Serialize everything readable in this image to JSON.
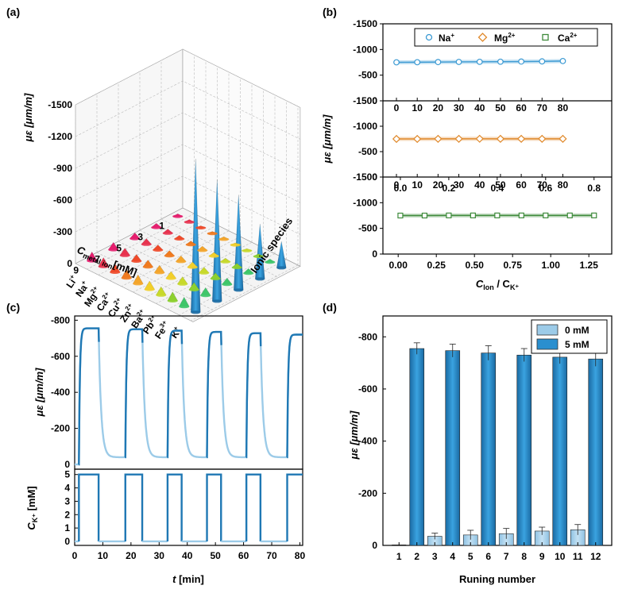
{
  "panels": {
    "a": "(a)",
    "b": "(b)",
    "c": "(c)",
    "d": "(d)"
  },
  "colors": {
    "light": "#9ccbe8",
    "dark": "#1f78b4",
    "dark_bar": "#2a8fcf",
    "na": "#3c9ad3",
    "mg": "#e0892b",
    "ca": "#3e8a3b"
  },
  "chart_data": [
    {
      "type": "bar3d",
      "panel": "a",
      "title": "",
      "zlabel": "με [μm/m]",
      "xlabel_main": "C",
      "xlabel_sub": "metal ion",
      "xlabel_unit": "[mM]",
      "ylabel": "Ionic species",
      "zlim": [
        0,
        -1500
      ],
      "z_ticks": [
        "-1500",
        "-1200",
        "-900",
        "-600",
        "-300",
        "0"
      ],
      "conc_ticks": [
        "9",
        "7",
        "5",
        "3",
        "1"
      ],
      "concentrations": [
        1,
        3,
        5,
        7,
        9
      ],
      "ions": [
        "Li⁺",
        "Na⁺",
        "Mg²⁺",
        "Ca²⁺",
        "Cu²⁺",
        "Zn²⁺",
        "Ba²⁺",
        "Pb²⁺",
        "Fe³⁺",
        "K⁺"
      ],
      "ion_labels": [
        {
          "base": "Li",
          "sup": "+"
        },
        {
          "base": "Na",
          "sup": "+"
        },
        {
          "base": "Mg",
          "sup": "2+"
        },
        {
          "base": "Ca",
          "sup": "2+"
        },
        {
          "base": "Cu",
          "sup": "2+"
        },
        {
          "base": "Zn",
          "sup": "2+"
        },
        {
          "base": "Ba",
          "sup": "2+"
        },
        {
          "base": "Pb",
          "sup": "2+"
        },
        {
          "base": "Fe",
          "sup": "3+"
        },
        {
          "base": "K",
          "sup": "+"
        }
      ],
      "values": [
        [
          -25,
          -40,
          -55,
          -70,
          -85
        ],
        [
          -25,
          -40,
          -55,
          -70,
          -85
        ],
        [
          -20,
          -35,
          -50,
          -65,
          -80
        ],
        [
          -20,
          -35,
          -50,
          -65,
          -80
        ],
        [
          -25,
          -40,
          -55,
          -70,
          -85
        ],
        [
          -20,
          -35,
          -50,
          -65,
          -80
        ],
        [
          -20,
          -35,
          -55,
          -70,
          -80
        ],
        [
          -25,
          -40,
          -55,
          -70,
          -85
        ],
        [
          -30,
          -45,
          -60,
          -75,
          -90
        ],
        [
          -250,
          -520,
          -900,
          -1150,
          -1450
        ]
      ]
    },
    {
      "type": "line",
      "panel": "b",
      "ylabel": "με [μm/m]",
      "xlabel_main": "C",
      "xlabel_sub1": "Ion",
      "xlabel_sep": " / C",
      "xlabel_sub2": "K⁺",
      "legend": [
        "Na⁺",
        "Mg²⁺",
        "Ca²⁺"
      ],
      "legend_labels": [
        {
          "base": "Na",
          "sup": "+"
        },
        {
          "base": "Mg",
          "sup": "2+"
        },
        {
          "base": "Ca",
          "sup": "2+"
        }
      ],
      "subplots": [
        {
          "name": "Na⁺",
          "marker": "circle",
          "ylim": [
            0,
            -1500
          ],
          "y_ticks": [
            "-1500",
            "-1000",
            "-500",
            "0"
          ],
          "x_ticks": [
            "0",
            "10",
            "20",
            "30",
            "40",
            "50",
            "60",
            "70",
            "80"
          ],
          "xlim": [
            -6.5,
            103.5
          ],
          "x": [
            0,
            10,
            20,
            30,
            40,
            50,
            60,
            70,
            80
          ],
          "y": [
            -750,
            -752,
            -755,
            -758,
            -760,
            -762,
            -765,
            -768,
            -775
          ]
        },
        {
          "name": "Mg²⁺",
          "marker": "diamond",
          "ylim": [
            0,
            -1500
          ],
          "y_ticks": [
            "-1500",
            "-1000",
            "-500",
            "0"
          ],
          "x_ticks": [
            "0",
            "10",
            "20",
            "30",
            "40",
            "50",
            "60",
            "70",
            "80"
          ],
          "xlim": [
            -6.5,
            103.5
          ],
          "x": [
            0,
            10,
            20,
            30,
            40,
            50,
            60,
            70,
            80
          ],
          "y": [
            -750,
            -750,
            -752,
            -752,
            -753,
            -752,
            -752,
            -752,
            -752
          ]
        },
        {
          "name": "Ca²⁺",
          "marker": "square",
          "ylim": [
            0,
            -1500
          ],
          "y_ticks": [
            "-1500",
            "-1000",
            "-500",
            "0"
          ],
          "x_ticks": [
            "0.0",
            "0.2",
            "0.4",
            "0.6",
            "0.8"
          ],
          "xlim": [
            -0.072,
            0.873
          ],
          "x": [
            0.0,
            0.1,
            0.2,
            0.3,
            0.4,
            0.5,
            0.6,
            0.7,
            0.8
          ],
          "y": [
            -750,
            -750,
            -752,
            -752,
            -752,
            -752,
            -752,
            -752,
            -752
          ]
        }
      ],
      "bottom_x_ticks": [
        "0.00",
        "0.25",
        "0.50",
        "0.75",
        "1.00",
        "1.25"
      ],
      "bottom_xlim": [
        -0.1,
        1.4
      ]
    },
    {
      "type": "line",
      "panel": "c",
      "top": {
        "ylabel": "με [μm/m]",
        "ylim": [
          0,
          -850
        ],
        "y_ticks": [
          "-800",
          "-600",
          "-400",
          "-200",
          "0"
        ],
        "cycles": [
          {
            "rise": 1.5,
            "fall": 8.5,
            "peak": -755,
            "base": -40
          },
          {
            "rise": 18,
            "fall": 24,
            "peak": -750,
            "base": -40
          },
          {
            "rise": 33,
            "fall": 38,
            "peak": -742,
            "base": -40
          },
          {
            "rise": 47,
            "fall": 52,
            "peak": -735,
            "base": -40
          },
          {
            "rise": 61,
            "fall": 66,
            "peak": -728,
            "base": -40
          },
          {
            "rise": 75.5,
            "end": 81,
            "peak": -720
          }
        ]
      },
      "bottom": {
        "ylabel_main": "C",
        "ylabel_sub": "K⁺",
        "ylabel_unit": " [mM]",
        "ylim": [
          -0.3,
          5.4
        ],
        "y_ticks": [
          "0",
          "1",
          "2",
          "3",
          "4",
          "5"
        ],
        "pulses": [
          [
            1.5,
            8.5
          ],
          [
            18,
            24
          ],
          [
            33,
            38
          ],
          [
            47,
            52
          ],
          [
            61,
            66
          ],
          [
            75.5,
            81
          ]
        ],
        "high": 5,
        "low": 0
      },
      "xlabel": "t [min]",
      "xlabel_var": "t",
      "xlabel_unit": " [min]",
      "x_ticks": [
        "0",
        "10",
        "20",
        "30",
        "40",
        "50",
        "60",
        "70",
        "80"
      ],
      "xlim": [
        0,
        81
      ]
    },
    {
      "type": "bar",
      "panel": "d",
      "ylabel": "με [μm/m]",
      "xlabel": "Runing number",
      "ylim": [
        0,
        -880
      ],
      "y_ticks": [
        "-800",
        "-600",
        "-400",
        "-200",
        "0"
      ],
      "legend": [
        "0 mM",
        "5 mM"
      ],
      "categories": [
        "1",
        "2",
        "3",
        "4",
        "5",
        "6",
        "7",
        "8",
        "9",
        "10",
        "11",
        "12"
      ],
      "values": [
        0,
        -755,
        -35,
        -747,
        -40,
        -738,
        -45,
        -730,
        -55,
        -722,
        -60,
        -715
      ],
      "errors": [
        0,
        22,
        12,
        25,
        18,
        28,
        20,
        25,
        15,
        25,
        20,
        28
      ],
      "series_of": [
        "0 mM",
        "5 mM",
        "0 mM",
        "5 mM",
        "0 mM",
        "5 mM",
        "0 mM",
        "5 mM",
        "0 mM",
        "5 mM",
        "0 mM",
        "5 mM"
      ]
    }
  ]
}
